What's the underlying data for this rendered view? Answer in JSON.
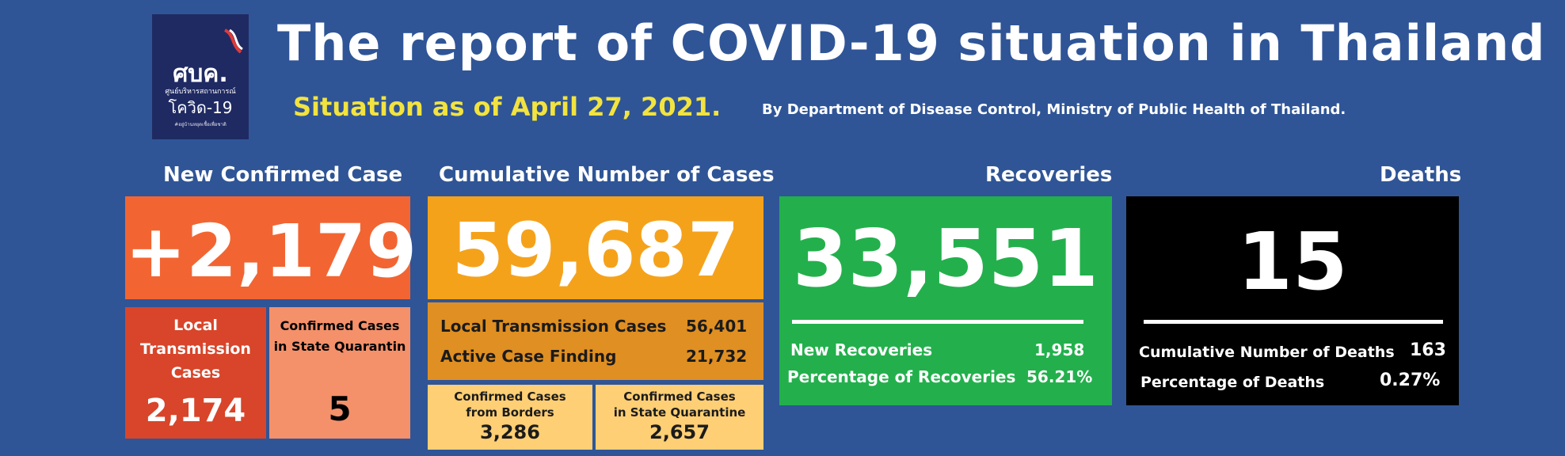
{
  "header": {
    "title": "The report of COVID-19 situation in Thailand",
    "situation": "Situation as of April 27, 2021.",
    "byline": "By Department of Disease Control, Ministry of Public Health of Thailand."
  },
  "logo": {
    "abbr": "ศบค.",
    "line1": "ศูนย์บริหารสถานการณ์",
    "line2": "โควิด-19",
    "tagline": "#อยู่บ้านหยุดเชื้อเพื่อชาติ"
  },
  "new_confirmed": {
    "heading": "New Confirmed Case",
    "value": "+2,179",
    "local": {
      "label_1": "Local",
      "label_2": "Transmission",
      "label_3": "Cases",
      "value": "2,174"
    },
    "quarantine": {
      "label_1": "Confirmed Cases",
      "label_2": "in State Quarantin",
      "value": "5"
    }
  },
  "cumulative": {
    "heading": "Cumulative Number of Cases",
    "value": "59,687",
    "local_label": "Local Transmission Cases",
    "local_value": "56,401",
    "active_label": "Active Case Finding",
    "active_value": "21,732",
    "borders": {
      "label_1": "Confirmed Cases",
      "label_2": "from Borders",
      "value": "3,286"
    },
    "quarantine": {
      "label_1": "Confirmed Cases",
      "label_2": "in State Quarantine",
      "value": "2,657"
    }
  },
  "recoveries": {
    "heading": "Recoveries",
    "value": "33,551",
    "new_label": "New Recoveries",
    "new_value": "1,958",
    "pct_label": "Percentage of Recoveries",
    "pct_value": "56.21%"
  },
  "deaths": {
    "heading": "Deaths",
    "value": "15",
    "cum_label": "Cumulative Number of Deaths",
    "cum_value": "163",
    "pct_label": "Percentage of Deaths",
    "pct_value": "0.27%"
  },
  "colors": {
    "background": "#2f5597",
    "orange_main": "#f26532",
    "orange_dark": "#d8452a",
    "salmon": "#f4906a",
    "amber": "#f5a21b",
    "amber_dark": "#e08f22",
    "pale_yellow": "#fecf74",
    "green": "#23b04c",
    "black": "#000000",
    "yellow_text": "#f2e33f"
  }
}
